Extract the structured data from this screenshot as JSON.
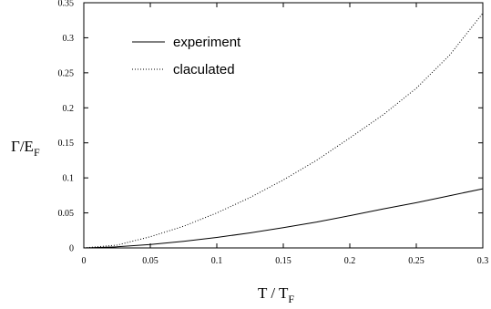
{
  "chart_data": {
    "type": "line",
    "xlabel_main": "T / T",
    "xlabel_sub": "F",
    "ylabel_main": "Γ/E",
    "ylabel_sub": "F",
    "xlim": [
      0,
      0.3
    ],
    "ylim": [
      0,
      0.35
    ],
    "x_ticks": [
      0,
      0.05,
      0.1,
      0.15,
      0.2,
      0.25,
      0.3
    ],
    "x_tick_labels": [
      "0",
      "0.05",
      "0.1",
      "0.15",
      "0.2",
      "0.25",
      "0.3"
    ],
    "y_ticks": [
      0,
      0.05,
      0.1,
      0.15,
      0.2,
      0.25,
      0.3,
      0.35
    ],
    "y_tick_labels": [
      "0",
      "0.05",
      "0.1",
      "0.15",
      "0.2",
      "0.25",
      "0.3",
      "0.35"
    ],
    "grid": false,
    "legend_position": "top-left",
    "series": [
      {
        "name": "experiment",
        "line_style": "solid",
        "color": "#000000",
        "x": [
          0,
          0.025,
          0.05,
          0.075,
          0.1,
          0.125,
          0.15,
          0.175,
          0.2,
          0.225,
          0.25,
          0.275,
          0.3
        ],
        "y": [
          0,
          0.0015,
          0.005,
          0.0095,
          0.015,
          0.0215,
          0.029,
          0.037,
          0.046,
          0.0555,
          0.0645,
          0.0745,
          0.0845
        ]
      },
      {
        "name": "claculated",
        "line_style": "dotted",
        "color": "#000000",
        "x": [
          0,
          0.025,
          0.05,
          0.075,
          0.1,
          0.125,
          0.15,
          0.175,
          0.2,
          0.225,
          0.25,
          0.275,
          0.3
        ],
        "y": [
          0,
          0.004,
          0.016,
          0.031,
          0.05,
          0.072,
          0.097,
          0.125,
          0.157,
          0.19,
          0.228,
          0.275,
          0.335
        ]
      }
    ]
  }
}
